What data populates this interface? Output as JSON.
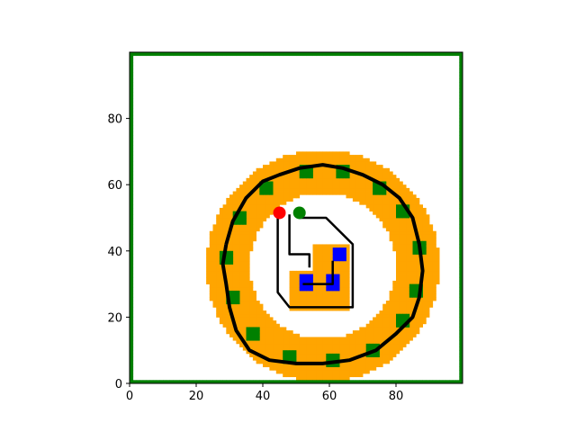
{
  "chart_data": {
    "type": "scatter",
    "title": "",
    "xlabel": "",
    "ylabel": "",
    "xlim": [
      0,
      100
    ],
    "ylim": [
      0,
      100
    ],
    "x_ticks": [
      0,
      20,
      40,
      60,
      80
    ],
    "y_ticks": [
      0,
      20,
      40,
      60,
      80
    ],
    "grid": false,
    "colors": {
      "free": "#ffffff",
      "inflated": "#ffa500",
      "obstacle": "#008000",
      "goal_region": "#0000ff",
      "path": "#000000",
      "start": "#ff0000",
      "goal": "#008000"
    },
    "border_wall": {
      "x_min": 0,
      "x_max": 99,
      "y_min": 0,
      "y_max": 99
    },
    "ring": {
      "center": [
        58,
        35.5
      ],
      "inner_radius": 22,
      "outer_radius": 35,
      "wall_radius": 29,
      "green_blocks_deg": [
        10,
        35,
        55,
        78,
        100,
        125,
        150,
        175,
        200,
        225,
        250,
        275,
        300,
        325,
        345
      ]
    },
    "inner_block": {
      "cells": [
        [
          48,
          22
        ],
        [
          49,
          22
        ],
        [
          50,
          22
        ],
        [
          51,
          22
        ],
        [
          52,
          22
        ],
        [
          53,
          22
        ],
        [
          54,
          22
        ],
        [
          55,
          22
        ],
        [
          56,
          22
        ],
        [
          57,
          22
        ],
        [
          58,
          22
        ],
        [
          59,
          22
        ],
        [
          60,
          22
        ],
        [
          61,
          22
        ],
        [
          62,
          22
        ],
        [
          63,
          22
        ],
        [
          64,
          22
        ],
        [
          65,
          22
        ],
        [
          48,
          26
        ],
        [
          65,
          26
        ],
        [
          48,
          30
        ],
        [
          65,
          30
        ],
        [
          56,
          34
        ],
        [
          65,
          34
        ],
        [
          56,
          38
        ],
        [
          65,
          38
        ],
        [
          56,
          41
        ],
        [
          65,
          41
        ]
      ],
      "bounds": [
        [
          48,
          22
        ],
        [
          66,
          42
        ]
      ]
    },
    "goal_region": [
      [
        51,
        28
      ],
      [
        55,
        33
      ],
      [
        59,
        28
      ],
      [
        63,
        33
      ],
      [
        61,
        37
      ],
      [
        65,
        41
      ]
    ],
    "series": [
      {
        "type": "line",
        "points": [
          [
            29,
            42
          ],
          [
            31,
            49
          ],
          [
            35,
            56
          ],
          [
            40,
            61
          ],
          [
            45,
            63
          ],
          [
            51,
            65
          ],
          [
            58,
            66
          ],
          [
            64,
            65
          ],
          [
            70,
            63
          ],
          [
            76,
            60
          ],
          [
            81,
            56
          ],
          [
            85,
            50
          ],
          [
            87,
            42
          ],
          [
            88,
            34
          ],
          [
            87,
            26
          ],
          [
            85,
            20
          ],
          [
            80,
            15
          ],
          [
            74,
            10
          ],
          [
            66,
            7
          ],
          [
            58,
            6
          ],
          [
            50,
            6
          ],
          [
            42,
            7
          ],
          [
            36,
            10
          ],
          [
            32,
            16
          ],
          [
            30,
            23
          ],
          [
            29,
            30
          ],
          [
            28,
            36
          ],
          [
            29,
            42
          ]
        ]
      },
      {
        "type": "line",
        "points": [
          [
            44.5,
            51.5
          ],
          [
            44.5,
            27.5
          ],
          [
            48,
            23
          ],
          [
            67,
            23
          ],
          [
            67,
            42
          ],
          [
            59,
            50
          ],
          [
            51,
            50
          ]
        ]
      },
      {
        "type": "line",
        "points": [
          [
            48,
            51
          ],
          [
            48,
            39
          ],
          [
            54,
            39
          ],
          [
            54,
            35
          ]
        ]
      },
      {
        "type": "line",
        "points": [
          [
            52,
            30
          ],
          [
            61,
            30
          ],
          [
            61,
            35
          ],
          [
            61,
            37
          ]
        ]
      }
    ],
    "markers": [
      {
        "label": "start",
        "x": 45,
        "y": 51.5
      },
      {
        "label": "goal",
        "x": 51,
        "y": 51.5
      }
    ]
  }
}
